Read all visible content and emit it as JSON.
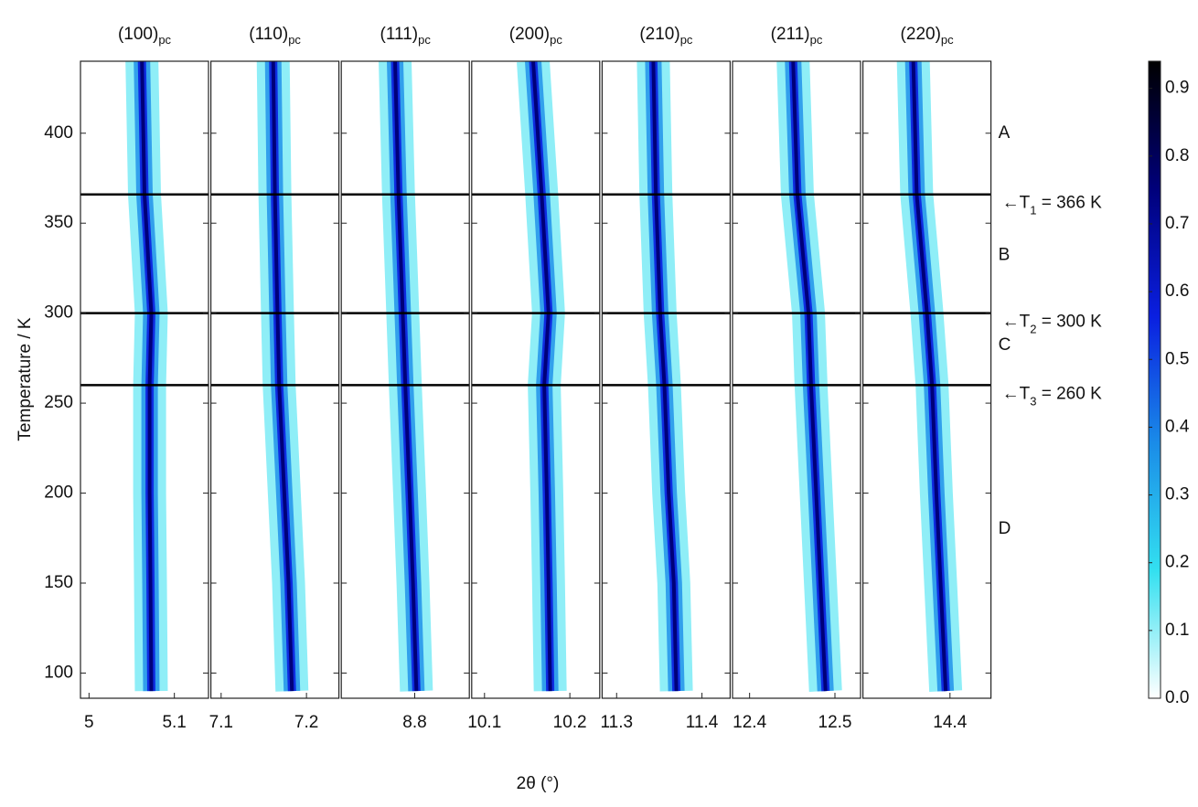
{
  "chart_data": {
    "type": "heatmap",
    "x_label": "2θ (°)",
    "y_label": "Temperature / K",
    "ylim": [
      86,
      440
    ],
    "yticks": [
      100,
      150,
      200,
      250,
      300,
      350,
      400
    ],
    "temperatures": [
      440,
      366,
      300,
      260,
      200,
      150,
      90
    ],
    "colorbar": {
      "clim": [
        0,
        0.94
      ],
      "ticks": [
        {
          "value": 0,
          "label": "0.0"
        },
        0.1,
        0.2,
        0.3,
        0.4,
        0.5,
        0.6,
        0.7,
        0.8,
        0.9
      ],
      "colormap": [
        "#ffffff",
        "#33e0f0",
        "#1a8ce8",
        "#0a1fe0",
        "#00007a",
        "#000000"
      ]
    },
    "transitions": [
      {
        "value": 366,
        "prefix": "←T",
        "sub": "1",
        "suffix": " = 366 K"
      },
      {
        "value": 300,
        "prefix": "←T",
        "sub": "2",
        "suffix": " = 300 K"
      },
      {
        "value": 260,
        "prefix": "←T",
        "sub": "3",
        "suffix": " = 260 K"
      }
    ],
    "regions": [
      {
        "label": "A",
        "y": 400
      },
      {
        "label": "B",
        "y": 332
      },
      {
        "label": "C",
        "y": 282
      },
      {
        "label": "D",
        "y": 180
      }
    ],
    "panels": [
      {
        "title": "(100)",
        "title_sub": "pc",
        "xlim": [
          4.99,
          5.14
        ],
        "xticks": [
          5,
          5.1
        ],
        "peak_center": [
          5.062,
          5.065,
          5.073,
          5.071,
          5.071,
          5.072,
          5.073
        ]
      },
      {
        "title": "(110)",
        "title_sub": "pc",
        "xlim": [
          7.088,
          7.238
        ],
        "xticks": [
          7.1,
          7.2
        ],
        "peak_center": [
          7.161,
          7.163,
          7.166,
          7.168,
          7.174,
          7.179,
          7.183
        ]
      },
      {
        "title": "(111)",
        "title_sub": "pc",
        "xlim": [
          8.714,
          8.864
        ],
        "xticks": [
          8.8
        ],
        "peak_center": [
          8.777,
          8.781,
          8.786,
          8.789,
          8.794,
          8.798,
          8.802
        ]
      },
      {
        "title": "(200)",
        "title_sub": "pc",
        "xlim": [
          10.085,
          10.235
        ],
        "xticks": [
          10.1,
          10.2
        ],
        "peak_center": [
          10.157,
          10.167,
          10.175,
          10.17,
          10.173,
          10.175,
          10.177
        ]
      },
      {
        "title": "(210)",
        "title_sub": "pc",
        "xlim": [
          11.283,
          11.433
        ],
        "xticks": [
          11.3,
          11.4
        ],
        "peak_center": [
          11.343,
          11.346,
          11.351,
          11.356,
          11.361,
          11.367,
          11.37
        ]
      },
      {
        "title": "(211)",
        "title_sub": "pc",
        "xlim": [
          12.38,
          12.53
        ],
        "xticks": [
          12.4,
          12.5
        ],
        "peak_center": [
          12.451,
          12.456,
          12.469,
          12.472,
          12.478,
          12.483,
          12.489
        ]
      },
      {
        "title": "(220)",
        "title_sub": "pc",
        "xlim": [
          14.298,
          14.448
        ],
        "xticks": [
          14.4
        ],
        "peak_center": [
          14.357,
          14.361,
          14.373,
          14.379,
          14.384,
          14.389,
          14.395
        ]
      }
    ]
  }
}
